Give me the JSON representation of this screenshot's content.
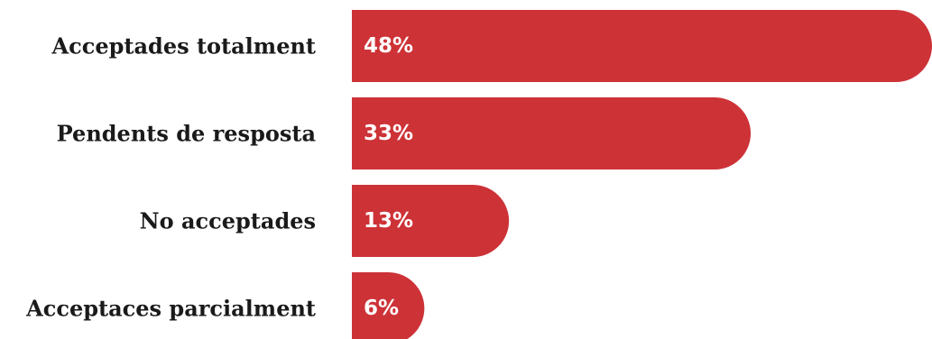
{
  "chart_data": {
    "type": "bar",
    "orientation": "horizontal",
    "categories": [
      "Acceptades totalment",
      "Pendents de resposta",
      "No acceptades",
      "Acceptaces parcialment"
    ],
    "values": [
      48,
      33,
      13,
      6
    ],
    "value_labels": [
      "48%",
      "33%",
      "13%",
      "6%"
    ],
    "unit": "%",
    "title": "",
    "xlabel": "",
    "ylabel": "",
    "xlim": [
      0,
      48
    ],
    "grid": false,
    "legend": "none",
    "bar_color": "#cd3237"
  }
}
